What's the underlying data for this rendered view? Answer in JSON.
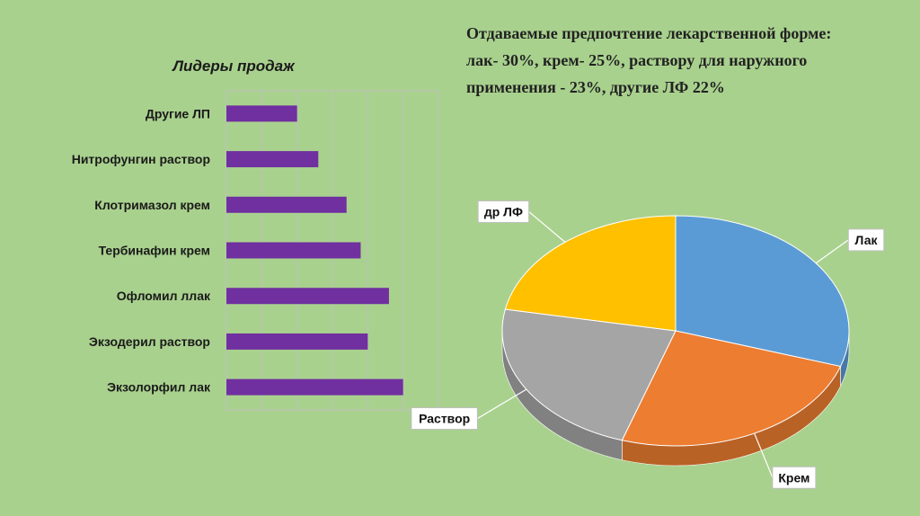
{
  "chart_data": [
    {
      "type": "bar",
      "orientation": "horizontal",
      "title": "Лидеры продаж",
      "categories": [
        "Другие ЛП",
        "Нитрофунгин раствор",
        "Клотримазол крем",
        "Тербинафин крем",
        "Офломил ллак",
        "Экзодерил раствор",
        "Экзолорфил лак"
      ],
      "values": [
        2.0,
        2.6,
        3.4,
        3.8,
        4.6,
        4.0,
        5.0
      ],
      "xlim": [
        0,
        6
      ],
      "grid": true,
      "color": "#7030a0"
    },
    {
      "type": "pie",
      "style": "3d",
      "labels": [
        "Лак",
        "Крем",
        "Раствор",
        "др ЛФ"
      ],
      "values": [
        30,
        25,
        23,
        22
      ],
      "colors": [
        "#5b9bd5",
        "#ed7d31",
        "#a5a5a5",
        "#ffc000"
      ]
    }
  ],
  "note": "Отдаваемые предпочтение лекарственной форме: лак- 30%, крем- 25%, раствору для наружного применения - 23%, другие ЛФ 22%"
}
